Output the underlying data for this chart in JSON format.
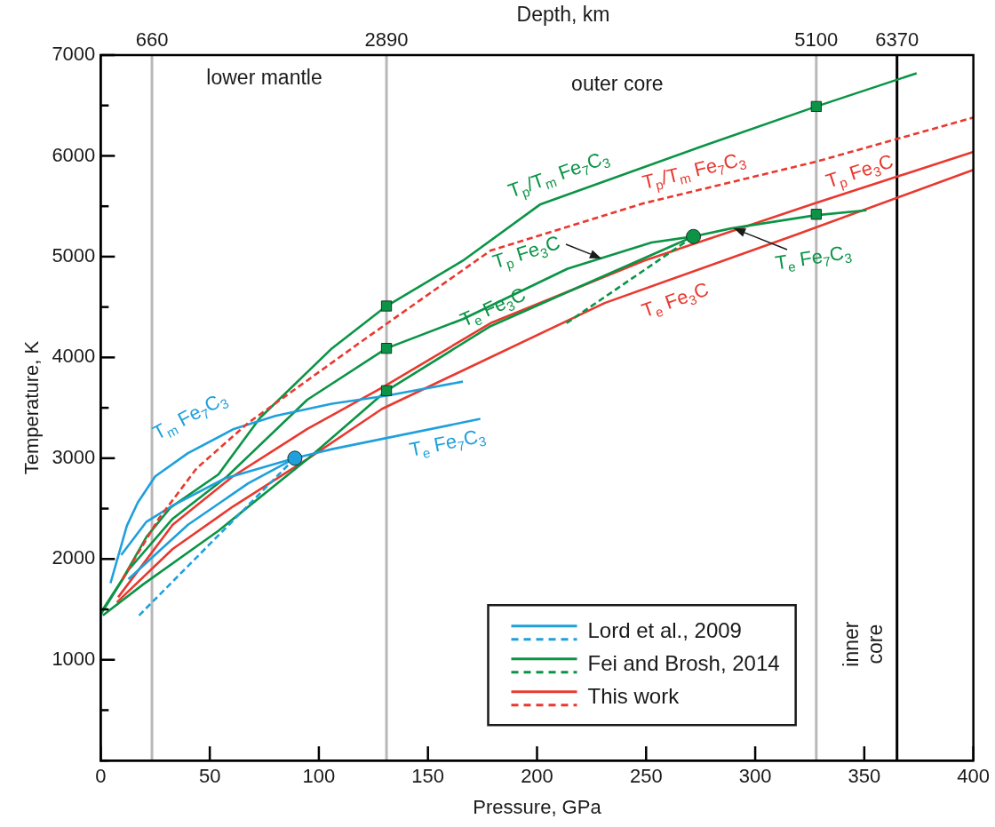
{
  "chart_data": {
    "type": "line",
    "xlabel": "Pressure, GPa",
    "ylabel": "Temperature, K",
    "xlim": [
      0,
      400
    ],
    "xticks": [
      0,
      50,
      100,
      150,
      200,
      250,
      300,
      350,
      400
    ],
    "ylim": [
      0,
      7000
    ],
    "yticks": [
      {
        "value": 0,
        "label": null
      },
      {
        "value": 500,
        "label": null
      },
      1000,
      {
        "value": 1500,
        "label": null
      },
      2000,
      {
        "value": 2500,
        "label": null
      },
      3000,
      {
        "value": 3500,
        "label": null
      },
      4000,
      {
        "value": 4500,
        "label": null
      },
      5000,
      {
        "value": 5500,
        "label": null
      },
      6000,
      {
        "value": 6500,
        "label": null
      },
      7000
    ],
    "grid": false,
    "legend": "bottom right",
    "marker": "none",
    "line_style": "solid",
    "ref_lines": [
      {
        "axis": "x",
        "value": 23.5,
        "color": "#b8b8b8"
      },
      {
        "axis": "x",
        "value": 131,
        "color": "#b8b8b8"
      },
      {
        "axis": "x",
        "value": 328,
        "color": "#b8b8b8"
      },
      {
        "axis": "x",
        "value": 365,
        "color": "#000000"
      }
    ],
    "series": [
      {
        "name": "Lord et al., 2009",
        "color": "#1fa0dc",
        "x": [
          4.5,
          12,
          17,
          25,
          40,
          61,
          80,
          106,
          131,
          166
        ],
        "values": [
          1760,
          2330,
          2560,
          2820,
          3050,
          3290,
          3420,
          3540,
          3620,
          3760
        ]
      },
      {
        "color": "#1fa0dc",
        "x": [
          9.4,
          21,
          33,
          57,
          89,
          106,
          174
        ],
        "values": [
          2040,
          2370,
          2530,
          2800,
          3000,
          3090,
          3390
        ]
      },
      {
        "color": "#1fa0dc",
        "x": [
          12.7,
          40,
          67.6,
          89
        ],
        "values": [
          1800,
          2340,
          2750,
          3000
        ]
      },
      {
        "color": "#1fa0dc",
        "line_style": "dashed",
        "x": [
          17.6,
          89
        ],
        "values": [
          1440,
          3000
        ]
      },
      {
        "name": "Fei and Brosh, 2014",
        "color": "#0b9446",
        "x": [
          1,
          10,
          21,
          32,
          54,
          73,
          106,
          131,
          166,
          201.6,
          275,
          328,
          374
        ],
        "values": [
          1500,
          1800,
          2220,
          2510,
          2840,
          3400,
          4090,
          4510,
          4960,
          5520,
          6090,
          6490,
          6820
        ]
      },
      {
        "color": "#0b9446",
        "x": [
          0,
          12.7,
          33,
          58,
          94.7,
          131,
          166,
          214,
          252.5,
          271.7
        ],
        "values": [
          1450,
          1890,
          2400,
          2820,
          3580,
          4090,
          4380,
          4880,
          5140,
          5200
        ]
      },
      {
        "color": "#0b9446",
        "x": [
          1,
          19.6,
          54,
          94.7,
          131,
          178.7,
          222.5,
          271.7
        ],
        "values": [
          1440,
          1750,
          2280,
          2990,
          3670,
          4310,
          4730,
          5200
        ]
      },
      {
        "color": "#0b9446",
        "x": [
          271.7,
          289,
          327.5,
          351
        ],
        "values": [
          5200,
          5280,
          5410,
          5460
        ]
      },
      {
        "color": "#0b9446",
        "line_style": "dashed",
        "x": [
          213.5,
          271.7
        ],
        "values": [
          4340,
          5200
        ]
      },
      {
        "name": "This work",
        "color": "#e8392f",
        "x": [
          8,
          33,
          60.6,
          94.7,
          129,
          178.7,
          249,
          327.5,
          400
        ],
        "values": [
          1620,
          2340,
          2820,
          3290,
          3700,
          4340,
          4960,
          5530,
          6040
        ]
      },
      {
        "color": "#e8392f",
        "x": [
          7.4,
          33,
          60.6,
          94.7,
          129,
          231,
          319,
          400
        ],
        "values": [
          1570,
          2100,
          2520,
          2990,
          3490,
          4540,
          5220,
          5860
        ]
      },
      {
        "color": "#e8392f",
        "line_style": "dashed",
        "x": [
          10,
          26.6,
          44,
          67.6,
          119,
          178.7,
          249,
          327.5,
          400
        ],
        "values": [
          1800,
          2400,
          2900,
          3350,
          4150,
          5060,
          5530,
          5940,
          6380
        ]
      },
      {
        "type": "scatter",
        "marker": "circle",
        "color": "#1fa0dc",
        "x": [
          89
        ],
        "values": [
          3000
        ]
      },
      {
        "type": "scatter",
        "marker": "circle",
        "color": "#0b9446",
        "x": [
          271.7
        ],
        "values": [
          5200
        ]
      },
      {
        "type": "scatter",
        "marker": "square",
        "color": "#0b9446",
        "x": [
          131,
          131,
          131,
          328,
          328
        ],
        "values": [
          4510,
          4090,
          3670,
          6490,
          5420
        ]
      }
    ],
    "annotations": [
      {
        "text": "T$_{m}$ Fe$_{7}$C$_{3}$",
        "x": 41,
        "y": 3060
      },
      {
        "text": "T$_{e}$ Fe$_{7}$C$_{3}$",
        "x": 159,
        "y": 3320
      },
      {
        "text": "T$_{p}$/T$_{m}$ Fe$_{7}$C$_{3}$",
        "x": 210,
        "y": 5580
      },
      {
        "text": "T$_{p}$ Fe$_{3}$C",
        "x": 229.5,
        "y": 4980
      },
      {
        "text": "T$_{e}$ Fe$_{3}$C",
        "x": 180,
        "y": 4320
      },
      {
        "text": "T$_{e}$ Fe$_{7}$C$_{3}$",
        "x": 290,
        "y": 5280
      },
      {
        "text": "T$_{p}$/T$_{m}$ Fe$_{7}$C$_{3}$",
        "x": 272,
        "y": 5650
      },
      {
        "text": "T$_{p}$ Fe$_{3}$C",
        "x": 348,
        "y": 5670
      },
      {
        "text": "T$_{e}$ Fe$_{3}$C",
        "x": 263.5,
        "y": 4790
      },
      "Depth, km",
      "660",
      "2890",
      "5100",
      "6370",
      "lower mantle",
      "outer core",
      "inner core"
    ]
  }
}
